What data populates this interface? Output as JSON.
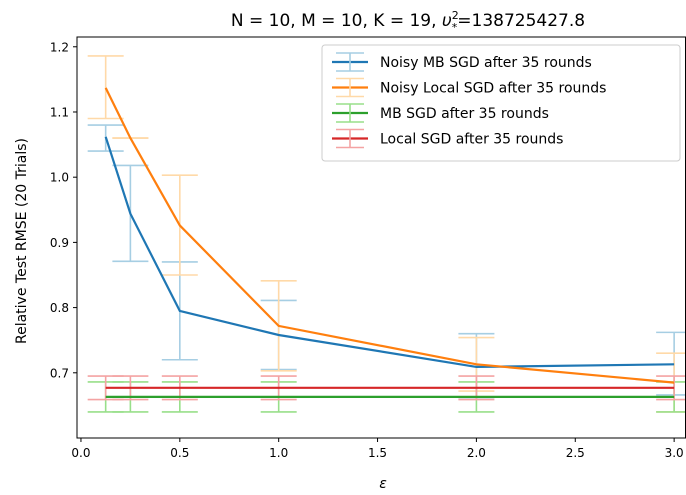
{
  "chart_data": {
    "type": "line",
    "title_main": "N = 10, M = 10, K = 19, ",
    "title_symbol": "υ",
    "title_sup": "2",
    "title_sub": "*",
    "title_value": "=138725427.8",
    "xlabel": "ε",
    "ylabel": "Relative Test RMSE (20 Trials)",
    "xlim": [
      -0.02,
      3.06
    ],
    "ylim": [
      0.6,
      1.215
    ],
    "xticks": [
      0.0,
      0.5,
      1.0,
      1.5,
      2.0,
      2.5,
      3.0
    ],
    "xtick_labels": [
      "0.0",
      "0.5",
      "1.0",
      "1.5",
      "2.0",
      "2.5",
      "3.0"
    ],
    "yticks": [
      0.7,
      0.8,
      0.9,
      1.0,
      1.1,
      1.2
    ],
    "ytick_labels": [
      "0.7",
      "0.8",
      "0.9",
      "1.0",
      "1.1",
      "1.2"
    ],
    "grid": false,
    "legend_position": "top-right",
    "series": [
      {
        "name": "Noisy MB SGD after 35 rounds",
        "color": "#1f77b4",
        "errcolor": "#a6cee3",
        "x": [
          0.125,
          0.25,
          0.5,
          1.0,
          2.0,
          3.0
        ],
        "y": [
          1.062,
          0.944,
          0.795,
          0.758,
          0.709,
          0.713
        ],
        "err_low": [
          1.04,
          0.871,
          0.72,
          0.705,
          0.662,
          0.666
        ],
        "err_high": [
          1.08,
          1.018,
          0.87,
          0.811,
          0.76,
          0.762
        ]
      },
      {
        "name": "Noisy Local SGD after 35 rounds",
        "color": "#ff7f0e",
        "errcolor": "#ffd9a8",
        "x": [
          0.125,
          0.25,
          0.5,
          1.0,
          2.0,
          3.0
        ],
        "y": [
          1.137,
          1.06,
          0.926,
          0.772,
          0.713,
          0.685
        ],
        "err_low": [
          1.09,
          1.06,
          0.85,
          0.703,
          0.672,
          0.64
        ],
        "err_high": [
          1.186,
          1.06,
          1.003,
          0.841,
          0.754,
          0.73
        ]
      },
      {
        "name": "MB SGD after 35 rounds",
        "color": "#2ca02c",
        "errcolor": "#98df8a",
        "x": [
          0.125,
          0.25,
          0.5,
          1.0,
          2.0,
          3.0
        ],
        "y": [
          0.663,
          0.663,
          0.663,
          0.663,
          0.663,
          0.663
        ],
        "err_low": [
          0.64,
          0.64,
          0.64,
          0.64,
          0.64,
          0.64
        ],
        "err_high": [
          0.686,
          0.686,
          0.686,
          0.686,
          0.686,
          0.686
        ]
      },
      {
        "name": "Local SGD after 35 rounds",
        "color": "#d62728",
        "errcolor": "#f4a3a3",
        "x": [
          0.125,
          0.25,
          0.5,
          1.0,
          2.0,
          3.0
        ],
        "y": [
          0.677,
          0.677,
          0.677,
          0.677,
          0.677,
          0.677
        ],
        "err_low": [
          0.659,
          0.659,
          0.659,
          0.659,
          0.659,
          0.659
        ],
        "err_high": [
          0.695,
          0.695,
          0.695,
          0.695,
          0.695,
          0.695
        ]
      }
    ]
  }
}
